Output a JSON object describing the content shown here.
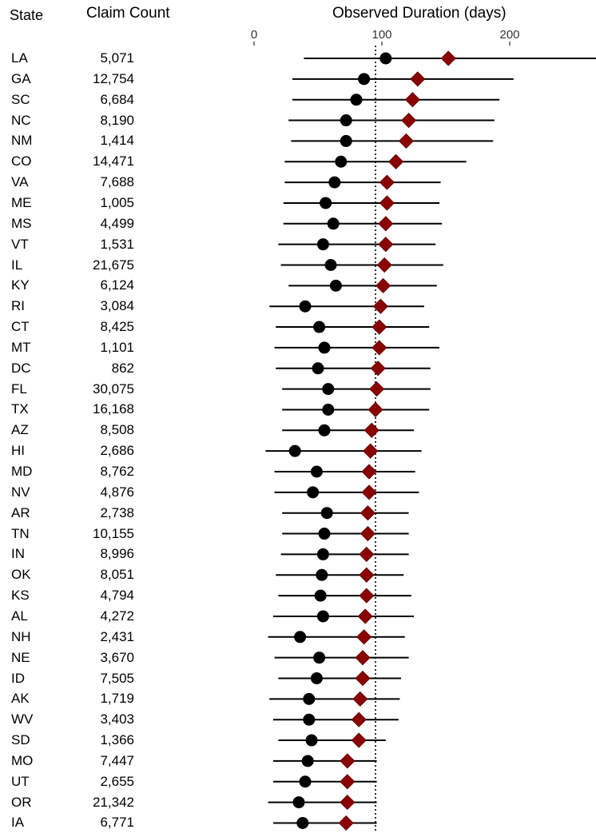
{
  "headers": {
    "state": "State",
    "claim_count": "Claim Count",
    "observed_duration": "Observed Duration (days)"
  },
  "colors": {
    "point": "#000000",
    "diamond": "#8b0000",
    "line": "#000000",
    "reference_line": "#000000"
  },
  "chart_data": {
    "type": "scatter",
    "subtype": "forest-plot",
    "xlabel": "Observed Duration (days)",
    "xticks": [
      0,
      100,
      200
    ],
    "xlim": [
      0,
      275
    ],
    "reference_line": {
      "x": 95,
      "style": "dotted"
    },
    "rows": [
      {
        "state": "LA",
        "count": "5,071",
        "low": 39,
        "point": 103,
        "diamond": 152,
        "high": 275
      },
      {
        "state": "GA",
        "count": "12,754",
        "low": 30,
        "point": 86,
        "diamond": 128,
        "high": 203
      },
      {
        "state": "SC",
        "count": "6,684",
        "low": 30,
        "point": 80,
        "diamond": 124,
        "high": 192
      },
      {
        "state": "NC",
        "count": "8,190",
        "low": 27,
        "point": 72,
        "diamond": 121,
        "high": 188
      },
      {
        "state": "NM",
        "count": "1,414",
        "low": 29,
        "point": 72,
        "diamond": 119,
        "high": 187
      },
      {
        "state": "CO",
        "count": "14,471",
        "low": 24,
        "point": 68,
        "diamond": 111,
        "high": 166
      },
      {
        "state": "VA",
        "count": "7,688",
        "low": 24,
        "point": 63,
        "diamond": 104,
        "high": 146
      },
      {
        "state": "ME",
        "count": "1,005",
        "low": 23,
        "point": 56,
        "diamond": 104,
        "high": 145
      },
      {
        "state": "MS",
        "count": "4,499",
        "low": 23,
        "point": 62,
        "diamond": 103,
        "high": 147
      },
      {
        "state": "VT",
        "count": "1,531",
        "low": 19,
        "point": 54,
        "diamond": 103,
        "high": 142
      },
      {
        "state": "IL",
        "count": "21,675",
        "low": 21,
        "point": 60,
        "diamond": 102,
        "high": 148
      },
      {
        "state": "KY",
        "count": "6,124",
        "low": 27,
        "point": 64,
        "diamond": 101,
        "high": 143
      },
      {
        "state": "RI",
        "count": "3,084",
        "low": 12,
        "point": 40,
        "diamond": 99,
        "high": 133
      },
      {
        "state": "CT",
        "count": "8,425",
        "low": 17,
        "point": 51,
        "diamond": 98,
        "high": 137
      },
      {
        "state": "MT",
        "count": "1,101",
        "low": 16,
        "point": 55,
        "diamond": 98,
        "high": 145
      },
      {
        "state": "DC",
        "count": "862",
        "low": 17,
        "point": 50,
        "diamond": 97,
        "high": 138
      },
      {
        "state": "FL",
        "count": "30,075",
        "low": 22,
        "point": 58,
        "diamond": 96,
        "high": 138
      },
      {
        "state": "TX",
        "count": "16,168",
        "low": 22,
        "point": 58,
        "diamond": 95,
        "high": 137
      },
      {
        "state": "AZ",
        "count": "8,508",
        "low": 22,
        "point": 55,
        "diamond": 92,
        "high": 125
      },
      {
        "state": "HI",
        "count": "2,686",
        "low": 9,
        "point": 32,
        "diamond": 91,
        "high": 131
      },
      {
        "state": "MD",
        "count": "8,762",
        "low": 16,
        "point": 49,
        "diamond": 90,
        "high": 126
      },
      {
        "state": "NV",
        "count": "4,876",
        "low": 16,
        "point": 46,
        "diamond": 90,
        "high": 129
      },
      {
        "state": "AR",
        "count": "2,738",
        "low": 22,
        "point": 57,
        "diamond": 89,
        "high": 121
      },
      {
        "state": "TN",
        "count": "10,155",
        "low": 22,
        "point": 55,
        "diamond": 89,
        "high": 121
      },
      {
        "state": "IN",
        "count": "8,996",
        "low": 21,
        "point": 54,
        "diamond": 88,
        "high": 121
      },
      {
        "state": "OK",
        "count": "8,051",
        "low": 17,
        "point": 53,
        "diamond": 88,
        "high": 117
      },
      {
        "state": "KS",
        "count": "4,794",
        "low": 19,
        "point": 52,
        "diamond": 88,
        "high": 123
      },
      {
        "state": "AL",
        "count": "4,272",
        "low": 15,
        "point": 54,
        "diamond": 87,
        "high": 125
      },
      {
        "state": "NH",
        "count": "2,431",
        "low": 11,
        "point": 36,
        "diamond": 86,
        "high": 118
      },
      {
        "state": "NE",
        "count": "3,670",
        "low": 16,
        "point": 51,
        "diamond": 85,
        "high": 121
      },
      {
        "state": "ID",
        "count": "7,505",
        "low": 19,
        "point": 49,
        "diamond": 85,
        "high": 115
      },
      {
        "state": "AK",
        "count": "1,719",
        "low": 12,
        "point": 43,
        "diamond": 83,
        "high": 114
      },
      {
        "state": "WV",
        "count": "3,403",
        "low": 15,
        "point": 43,
        "diamond": 82,
        "high": 113
      },
      {
        "state": "SD",
        "count": "1,366",
        "low": 19,
        "point": 45,
        "diamond": 82,
        "high": 103
      },
      {
        "state": "MO",
        "count": "7,447",
        "low": 15,
        "point": 42,
        "diamond": 73,
        "high": 96
      },
      {
        "state": "UT",
        "count": "2,655",
        "low": 15,
        "point": 40,
        "diamond": 73,
        "high": 96
      },
      {
        "state": "OR",
        "count": "21,342",
        "low": 11,
        "point": 35,
        "diamond": 73,
        "high": 96
      },
      {
        "state": "IA",
        "count": "6,771",
        "low": 15,
        "point": 38,
        "diamond": 72,
        "high": 96
      }
    ]
  }
}
